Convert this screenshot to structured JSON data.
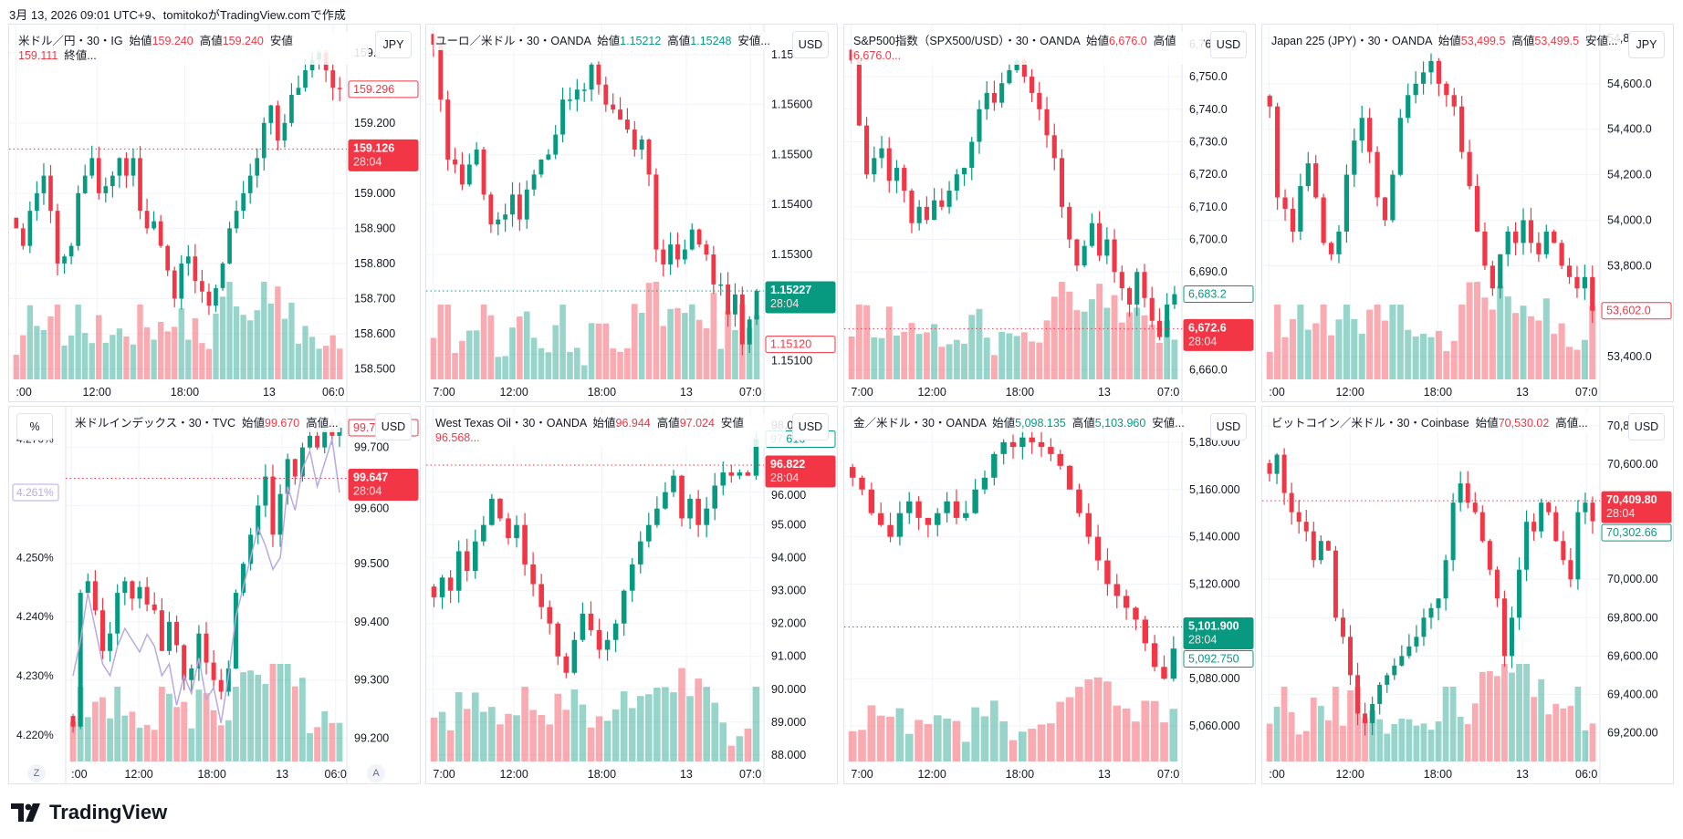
{
  "caption": "3月 13, 2026 09:01 UTC+9、tomitokoがTradingView.comで作成",
  "brand": "TradingView",
  "colors": {
    "up": "#089981",
    "down": "#F23645",
    "grid": "#f0f3fa",
    "yield_line": "#b8a9e0"
  },
  "panels": [
    {
      "legend": [
        {
          "t": "米ドル／円・30・IG  "
        },
        {
          "t": "始値"
        },
        {
          "t": "159.240",
          "c": "down"
        },
        {
          "t": "  高値"
        },
        {
          "t": "159.240",
          "c": "down"
        },
        {
          "t": "  安値"
        },
        {
          "t": "159.111",
          "c": "down"
        },
        {
          "t": "  終値..."
        }
      ],
      "currency": "JPY",
      "ylim": [
        158.47,
        159.48
      ],
      "ticks": [
        "159.400",
        "159.200",
        "159.000",
        "158.900",
        "158.800",
        "158.700",
        "158.600",
        "158.500"
      ],
      "time_labels": [
        ":00",
        "12:00",
        "18:00",
        "13",
        "06:0"
      ],
      "closes": [
        158.9,
        158.85,
        158.95,
        159.0,
        159.05,
        158.95,
        158.8,
        158.82,
        158.85,
        159.0,
        159.05,
        159.1,
        159.0,
        159.02,
        159.05,
        159.1,
        159.05,
        159.1,
        158.95,
        158.9,
        158.92,
        158.85,
        158.78,
        158.7,
        158.8,
        158.82,
        158.75,
        158.72,
        158.68,
        158.73,
        158.8,
        158.9,
        158.95,
        159.0,
        159.05,
        159.1,
        159.2,
        159.25,
        159.15,
        159.2,
        159.28,
        159.3,
        159.35,
        159.38,
        159.4,
        159.35,
        159.3,
        159.296
      ],
      "badges": [
        {
          "label": "159.296",
          "value": 159.296,
          "style": "outline",
          "color": "down"
        },
        {
          "label": "159.126",
          "value": 159.126,
          "style": "filled",
          "color": "down",
          "countdown": "28:04"
        }
      ]
    },
    {
      "legend": [
        {
          "t": "ユーロ／米ドル・30・OANDA  "
        },
        {
          "t": "始値"
        },
        {
          "t": "1.15212",
          "c": "up"
        },
        {
          "t": "  高値"
        },
        {
          "t": "1.15248",
          "c": "up"
        },
        {
          "t": "  安値..."
        }
      ],
      "currency": "USD",
      "ylim": [
        1.1505,
        1.1576
      ],
      "ticks": [
        "1.15700",
        "1.15600",
        "1.15500",
        "1.15400",
        "1.15300",
        "1.15100"
      ],
      "time_labels": [
        "7:00",
        "12:00",
        "18:00",
        "13",
        "07:0"
      ],
      "closes": [
        1.1572,
        1.1561,
        1.1549,
        1.1548,
        1.1544,
        1.1548,
        1.1551,
        1.1542,
        1.1536,
        1.1537,
        1.1538,
        1.1542,
        1.1537,
        1.1543,
        1.1546,
        1.1549,
        1.155,
        1.1554,
        1.1561,
        1.1561,
        1.1563,
        1.1563,
        1.1568,
        1.1564,
        1.156,
        1.1559,
        1.1557,
        1.1555,
        1.1551,
        1.1553,
        1.1546,
        1.1531,
        1.1528,
        1.1532,
        1.1529,
        1.1531,
        1.1535,
        1.1532,
        1.153,
        1.1524,
        1.1524,
        1.1518,
        1.1522,
        1.1512,
        1.1517,
        1.15227
      ],
      "badges": [
        {
          "label": "1.15227",
          "value": 1.15227,
          "style": "filled",
          "color": "up",
          "countdown": "28:04"
        },
        {
          "label": "1.15120",
          "value": 1.1512,
          "style": "outline",
          "color": "down"
        }
      ]
    },
    {
      "legend": [
        {
          "t": "S&P500指数（SPX500/USD）・30・OANDA  "
        },
        {
          "t": "始値"
        },
        {
          "t": "6,676.0",
          "c": "down"
        },
        {
          "t": "  高値"
        },
        {
          "t": "6,676.0...",
          "c": "down"
        }
      ],
      "currency": "USD",
      "ylim": [
        6657,
        6766
      ],
      "ticks": [
        "6,760.0",
        "6,750.0",
        "6,740.0",
        "6,730.0",
        "6,720.0",
        "6,710.0",
        "6,700.0",
        "6,690.0",
        "6,660.0"
      ],
      "time_labels": [
        "7:00",
        "12:00",
        "18:00",
        "13",
        "07:0"
      ],
      "closes": [
        6755,
        6735,
        6720,
        6725,
        6728,
        6718,
        6722,
        6715,
        6705,
        6710,
        6706,
        6712,
        6710,
        6715,
        6720,
        6722,
        6730,
        6740,
        6745,
        6742,
        6748,
        6752,
        6755,
        6750,
        6745,
        6740,
        6732,
        6725,
        6710,
        6700,
        6692,
        6698,
        6705,
        6695,
        6700,
        6690,
        6685,
        6680,
        6690,
        6682,
        6675,
        6670,
        6680,
        6683.2
      ],
      "badges": [
        {
          "label": "6,683.2",
          "value": 6683.2,
          "style": "outline",
          "color": "up"
        },
        {
          "label": "6,672.6",
          "value": 6672.6,
          "style": "filled",
          "color": "down",
          "countdown": "28:04"
        }
      ]
    },
    {
      "legend": [
        {
          "t": "Japan 225 (JPY)・30・OANDA  "
        },
        {
          "t": "始値"
        },
        {
          "t": "53,499.5",
          "c": "down"
        },
        {
          "t": "  高値"
        },
        {
          "t": "53,499.5",
          "c": "down"
        },
        {
          "t": "  安値..."
        }
      ],
      "currency": "JPY",
      "ylim": [
        53300,
        54860
      ],
      "ticks": [
        "54,800.0",
        "54,600.0",
        "54,400.0",
        "54,200.0",
        "54,000.0",
        "53,800.0",
        "53,400.0"
      ],
      "time_labels": [
        ":00",
        "12:00",
        "18:00",
        "13",
        "07:0"
      ],
      "closes": [
        54500,
        54100,
        54050,
        53950,
        54150,
        54250,
        54100,
        53900,
        53850,
        53950,
        54200,
        54350,
        54450,
        54300,
        54100,
        54000,
        54200,
        54450,
        54550,
        54600,
        54650,
        54700,
        54600,
        54550,
        54500,
        54300,
        54150,
        53950,
        53800,
        53700,
        53850,
        53950,
        53900,
        54000,
        53900,
        53850,
        53950,
        53900,
        53800,
        53750,
        53700,
        53750,
        53602
      ],
      "badges": [
        {
          "label": "53,602.0",
          "value": 53602,
          "style": "outline",
          "color": "down"
        }
      ]
    },
    {
      "legend": [
        {
          "t": "米ドルインデックス・30・TVC  "
        },
        {
          "t": "始値"
        },
        {
          "t": "99.670",
          "c": "down"
        },
        {
          "t": "  高値..."
        }
      ],
      "currency": "USD",
      "left_currency": "%",
      "ylim": [
        99.16,
        99.77
      ],
      "ticks": [
        "99.700",
        "99.600",
        "99.500",
        "99.400",
        "99.300",
        "99.200"
      ],
      "left_ylim": [
        4.2155,
        4.2755
      ],
      "left_ticks": [
        "4.270%",
        "4.250%",
        "4.240%",
        "4.230%",
        "4.220%"
      ],
      "time_labels": [
        ":00",
        "12:00",
        "18:00",
        "13",
        "06:0"
      ],
      "closes": [
        99.22,
        99.45,
        99.47,
        99.42,
        99.35,
        99.38,
        99.45,
        99.47,
        99.44,
        99.46,
        99.43,
        99.42,
        99.35,
        99.4,
        99.36,
        99.3,
        99.32,
        99.38,
        99.33,
        99.3,
        99.28,
        99.32,
        99.45,
        99.5,
        99.55,
        99.6,
        99.65,
        99.55,
        99.62,
        99.68,
        99.65,
        99.7,
        99.72,
        99.7,
        99.73,
        99.72,
        99.734
      ],
      "yield_line": [
        4.23,
        4.236,
        4.244,
        4.238,
        4.232,
        4.23,
        4.235,
        4.238,
        4.236,
        4.234,
        4.237,
        4.235,
        4.23,
        4.232,
        4.225,
        4.23,
        4.227,
        4.233,
        4.226,
        4.228,
        4.222,
        4.23,
        4.24,
        4.245,
        4.25,
        4.255,
        4.252,
        4.248,
        4.25,
        4.262,
        4.258,
        4.265,
        4.268,
        4.262,
        4.266,
        4.27,
        4.261
      ],
      "badges": [
        {
          "label": "99.734",
          "value": 99.734,
          "style": "outline",
          "color": "down"
        },
        {
          "label": "99.647",
          "value": 99.647,
          "style": "filled",
          "color": "down",
          "countdown": "28:04"
        }
      ],
      "left_badges": [
        {
          "label": "4.261%",
          "value": 4.261
        }
      ],
      "buttons": [
        "Z",
        "A"
      ]
    },
    {
      "legend": [
        {
          "t": "West Texas Oil・30・OANDA  "
        },
        {
          "t": "始値"
        },
        {
          "t": "96.944",
          "c": "down"
        },
        {
          "t": "  高値"
        },
        {
          "t": "97.024",
          "c": "down"
        },
        {
          "t": "  安値"
        },
        {
          "t": "96.568...",
          "c": "down"
        }
      ],
      "currency": "USD",
      "ylim": [
        87.8,
        98.6
      ],
      "ticks": [
        "98.000",
        "96.000",
        "95.000",
        "94.000",
        "93.000",
        "92.000",
        "91.000",
        "90.000",
        "89.000",
        "88.000"
      ],
      "time_labels": [
        "7:00",
        "12:00",
        "18:00",
        "13",
        "07:0"
      ],
      "closes": [
        92.8,
        93.4,
        93.0,
        94.2,
        93.6,
        94.5,
        95.0,
        95.8,
        95.2,
        94.6,
        95.0,
        93.8,
        93.2,
        92.5,
        92.0,
        91.0,
        90.5,
        91.5,
        92.3,
        91.8,
        91.2,
        91.5,
        92.0,
        93.0,
        93.8,
        94.5,
        95.0,
        95.5,
        96.0,
        96.5,
        95.2,
        95.8,
        95.0,
        95.5,
        96.2,
        96.6,
        96.5,
        96.6,
        96.5,
        97.616
      ],
      "badges": [
        {
          "label": "97.616",
          "value": 97.616,
          "style": "outline",
          "color": "up"
        },
        {
          "label": "96.822",
          "value": 96.822,
          "style": "filled",
          "color": "down",
          "countdown": "28:04"
        }
      ]
    },
    {
      "legend": [
        {
          "t": "金／米ドル・30・OANDA  "
        },
        {
          "t": "始値"
        },
        {
          "t": "5,098.135",
          "c": "up"
        },
        {
          "t": "  高値"
        },
        {
          "t": "5,103.960",
          "c": "up"
        },
        {
          "t": "  安値..."
        }
      ],
      "currency": "USD",
      "ylim": [
        5045,
        5195
      ],
      "ticks": [
        "5,180.000",
        "5,160.000",
        "5,140.000",
        "5,120.000",
        "5,080.000",
        "5,060.000"
      ],
      "time_labels": [
        "7:00",
        "12:00",
        "18:00",
        "13",
        "07:0"
      ],
      "closes": [
        5165,
        5160,
        5150,
        5145,
        5140,
        5150,
        5155,
        5148,
        5145,
        5150,
        5155,
        5148,
        5150,
        5160,
        5165,
        5175,
        5180,
        5178,
        5182,
        5180,
        5178,
        5175,
        5170,
        5160,
        5150,
        5140,
        5130,
        5120,
        5115,
        5110,
        5105,
        5095,
        5085,
        5080,
        5092.75
      ],
      "badges": [
        {
          "label": "5,101.900",
          "value": 5101.9,
          "style": "filled",
          "color": "up",
          "countdown": "28:04"
        },
        {
          "label": "5,092.750",
          "value": 5092.75,
          "style": "outline",
          "color": "up"
        }
      ]
    },
    {
      "legend": [
        {
          "t": "ビットコイン／米ドル・30・Coinbase  "
        },
        {
          "t": "始値"
        },
        {
          "t": "70,530.02",
          "c": "down"
        },
        {
          "t": "  高値..."
        }
      ],
      "currency": "USD",
      "ylim": [
        69050,
        70900
      ],
      "ticks": [
        "70,800.00",
        "70,600.00",
        "70,000.00",
        "69,800.00",
        "69,600.00",
        "69,400.00",
        "69,200.00"
      ],
      "time_labels": [
        ":00",
        "12:00",
        "18:00",
        "13",
        "06:0"
      ],
      "closes": [
        70550,
        70650,
        70450,
        70350,
        70300,
        70250,
        70100,
        70200,
        70150,
        69800,
        69700,
        69500,
        69300,
        69250,
        69350,
        69450,
        69500,
        69550,
        69600,
        69650,
        69700,
        69800,
        69850,
        69900,
        70100,
        70400,
        70500,
        70400,
        70350,
        70200,
        70050,
        69900,
        69600,
        69800,
        70050,
        70300,
        70250,
        70400,
        70350,
        70200,
        70100,
        70000,
        70350,
        70400,
        70302.66
      ],
      "badges": [
        {
          "label": "70,409.80",
          "value": 70409.8,
          "style": "filled",
          "color": "down",
          "countdown": "28:04"
        },
        {
          "label": "70,302.66",
          "value": 70302.66,
          "style": "outline",
          "color": "up"
        }
      ]
    }
  ]
}
